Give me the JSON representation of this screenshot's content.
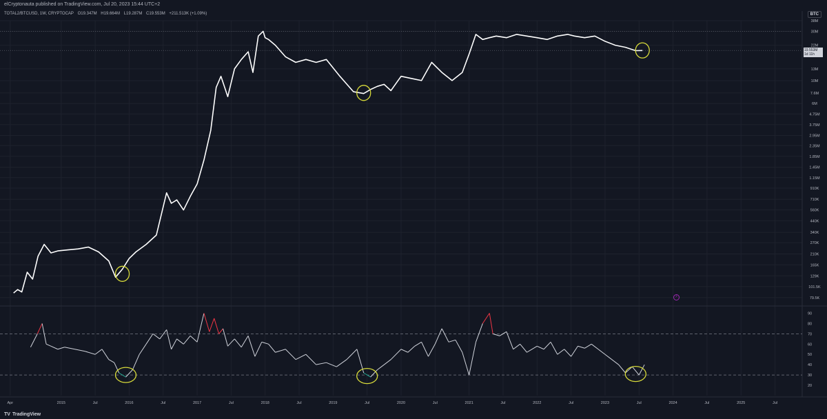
{
  "header": {
    "published": "elCryptonauta published on TradingView.com, Jul 20, 2023 15:44 UTC+2",
    "symbol": "TOTAL2/BTCUSD, 1W, CRYPTOCAP",
    "open": "O19.347M",
    "high": "H19.664M",
    "low": "L19.287M",
    "close": "C19.553M",
    "change": "+211.513K (+1.09%)",
    "currency": "BTC"
  },
  "price_tag": {
    "value": "19.553M",
    "time": "1d 11h"
  },
  "footer": {
    "brand": "TradingView",
    "logo_mark": "TV"
  },
  "colors": {
    "background": "#131722",
    "price": "#ffffff",
    "rsi": "#d1d4dc",
    "rsi_overbought": "#f23645",
    "rsi_oversold": "#22ab94",
    "highlight": "#d8db3a"
  },
  "chart_data": [
    {
      "type": "line",
      "name": "price",
      "yscale": "log",
      "ylim": [
        68000,
        38000000
      ],
      "xlim": [
        2014.1,
        2025.9
      ],
      "x": [
        2014.3,
        2014.36,
        2014.42,
        2014.5,
        2014.58,
        2014.66,
        2014.75,
        2014.85,
        2014.95,
        2015.1,
        2015.25,
        2015.4,
        2015.55,
        2015.7,
        2015.8,
        2015.9,
        2016.0,
        2016.1,
        2016.25,
        2016.4,
        2016.55,
        2016.62,
        2016.7,
        2016.8,
        2016.9,
        2017.0,
        2017.1,
        2017.2,
        2017.28,
        2017.35,
        2017.45,
        2017.55,
        2017.65,
        2017.75,
        2017.82,
        2017.9,
        2017.97,
        2018.0,
        2018.05,
        2018.15,
        2018.3,
        2018.45,
        2018.6,
        2018.75,
        2018.9,
        2019.1,
        2019.3,
        2019.45,
        2019.55,
        2019.65,
        2019.75,
        2019.85,
        2020.0,
        2020.15,
        2020.3,
        2020.45,
        2020.6,
        2020.75,
        2020.9,
        2021.0,
        2021.1,
        2021.2,
        2021.3,
        2021.4,
        2021.55,
        2021.7,
        2021.85,
        2022.0,
        2022.15,
        2022.3,
        2022.45,
        2022.55,
        2022.7,
        2022.85,
        2023.0,
        2023.15,
        2023.3,
        2023.45,
        2023.55
      ],
      "y": [
        88000,
        95000,
        90000,
        140000,
        120000,
        200000,
        260000,
        215000,
        225000,
        230000,
        235000,
        245000,
        220000,
        180000,
        125000,
        150000,
        190000,
        220000,
        260000,
        320000,
        820000,
        650000,
        700000,
        560000,
        760000,
        1000000,
        1700000,
        3300000,
        8600000,
        11000000,
        7000000,
        13000000,
        16000000,
        19000000,
        12000000,
        27000000,
        30000000,
        26000000,
        25000000,
        22000000,
        17000000,
        15000000,
        16000000,
        15000000,
        16000000,
        11000000,
        7800000,
        7500000,
        8200000,
        8800000,
        9200000,
        8000000,
        11000000,
        10500000,
        10000000,
        15000000,
        12000000,
        10000000,
        12000000,
        18000000,
        28000000,
        25000000,
        26000000,
        27000000,
        26000000,
        28000000,
        27000000,
        26000000,
        25000000,
        27000000,
        28000000,
        27000000,
        26000000,
        27000000,
        24000000,
        22000000,
        21000000,
        19500000,
        19553000
      ],
      "y_ticks": [
        {
          "value": 38000000,
          "label": "38M"
        },
        {
          "value": 30000000,
          "label": "30M"
        },
        {
          "value": 22000000,
          "label": "22M"
        },
        {
          "value": 13000000,
          "label": "13M"
        },
        {
          "value": 10000000,
          "label": "10M"
        },
        {
          "value": 7600000,
          "label": "7.6M"
        },
        {
          "value": 6000000,
          "label": "6M"
        },
        {
          "value": 4750000,
          "label": "4.75M"
        },
        {
          "value": 3750000,
          "label": "3.75M"
        },
        {
          "value": 2950000,
          "label": "2.95M"
        },
        {
          "value": 2350000,
          "label": "2.35M"
        },
        {
          "value": 1850000,
          "label": "1.85M"
        },
        {
          "value": 1450000,
          "label": "1.45M"
        },
        {
          "value": 1150000,
          "label": "1.15M"
        },
        {
          "value": 910000,
          "label": "910K"
        },
        {
          "value": 710000,
          "label": "710K"
        },
        {
          "value": 560000,
          "label": "560K"
        },
        {
          "value": 440000,
          "label": "440K"
        },
        {
          "value": 340000,
          "label": "340K"
        },
        {
          "value": 270000,
          "label": "270K"
        },
        {
          "value": 210000,
          "label": "210K"
        },
        {
          "value": 165000,
          "label": "165K"
        },
        {
          "value": 129000,
          "label": "129K"
        },
        {
          "value": 101500,
          "label": "101.5K"
        },
        {
          "value": 79500,
          "label": "79.5K"
        }
      ],
      "highlights": [
        {
          "x": 2015.9,
          "y": 135000
        },
        {
          "x": 2019.45,
          "y": 7600000
        },
        {
          "x": 2023.55,
          "y": 19600000
        }
      ]
    },
    {
      "type": "line",
      "name": "rsi",
      "ylim": [
        10,
        95
      ],
      "levels": [
        70,
        30
      ],
      "x": [
        2014.55,
        2014.65,
        2014.72,
        2014.78,
        2014.85,
        2014.95,
        2015.05,
        2015.2,
        2015.35,
        2015.5,
        2015.6,
        2015.7,
        2015.78,
        2015.85,
        2015.95,
        2016.05,
        2016.15,
        2016.25,
        2016.35,
        2016.45,
        2016.55,
        2016.62,
        2016.7,
        2016.8,
        2016.9,
        2017.0,
        2017.1,
        2017.18,
        2017.25,
        2017.32,
        2017.38,
        2017.45,
        2017.55,
        2017.65,
        2017.75,
        2017.85,
        2017.95,
        2018.05,
        2018.15,
        2018.3,
        2018.45,
        2018.6,
        2018.75,
        2018.9,
        2019.05,
        2019.2,
        2019.35,
        2019.45,
        2019.55,
        2019.65,
        2019.75,
        2019.85,
        2020.0,
        2020.1,
        2020.2,
        2020.3,
        2020.4,
        2020.5,
        2020.6,
        2020.7,
        2020.8,
        2020.9,
        2021.0,
        2021.1,
        2021.2,
        2021.3,
        2021.35,
        2021.45,
        2021.55,
        2021.65,
        2021.75,
        2021.85,
        2022.0,
        2022.1,
        2022.2,
        2022.3,
        2022.4,
        2022.5,
        2022.6,
        2022.7,
        2022.8,
        2022.9,
        2023.0,
        2023.1,
        2023.2,
        2023.3,
        2023.4,
        2023.5,
        2023.58
      ],
      "y": [
        57,
        70,
        80,
        60,
        58,
        55,
        57,
        55,
        53,
        50,
        55,
        45,
        42,
        32,
        28,
        35,
        50,
        60,
        70,
        65,
        74,
        55,
        65,
        60,
        68,
        62,
        90,
        72,
        85,
        70,
        75,
        58,
        65,
        57,
        68,
        48,
        62,
        60,
        52,
        55,
        45,
        50,
        40,
        42,
        38,
        45,
        55,
        32,
        28,
        35,
        40,
        45,
        55,
        52,
        58,
        62,
        48,
        60,
        75,
        62,
        64,
        52,
        30,
        62,
        80,
        90,
        70,
        68,
        72,
        55,
        60,
        52,
        58,
        55,
        62,
        50,
        55,
        48,
        58,
        56,
        60,
        55,
        50,
        45,
        40,
        32,
        38,
        30,
        40
      ],
      "y_ticks": [
        {
          "value": 90,
          "label": "90"
        },
        {
          "value": 80,
          "label": "80"
        },
        {
          "value": 70,
          "label": "70"
        },
        {
          "value": 60,
          "label": "60"
        },
        {
          "value": 50,
          "label": "50"
        },
        {
          "value": 40,
          "label": "40"
        },
        {
          "value": 30,
          "label": "30"
        },
        {
          "value": 20,
          "label": "20"
        }
      ],
      "highlights": [
        {
          "x": 2015.95,
          "y": 30
        },
        {
          "x": 2019.5,
          "y": 29
        },
        {
          "x": 2023.45,
          "y": 31
        }
      ]
    }
  ],
  "time_axis": {
    "ticks": [
      {
        "x": 2014.25,
        "label": "Apr"
      },
      {
        "x": 2015.0,
        "label": "2015"
      },
      {
        "x": 2015.5,
        "label": "Jul"
      },
      {
        "x": 2016.0,
        "label": "2016"
      },
      {
        "x": 2016.5,
        "label": "Jul"
      },
      {
        "x": 2017.0,
        "label": "2017"
      },
      {
        "x": 2017.5,
        "label": "Jul"
      },
      {
        "x": 2018.0,
        "label": "2018"
      },
      {
        "x": 2018.5,
        "label": "Jul"
      },
      {
        "x": 2019.0,
        "label": "2019"
      },
      {
        "x": 2019.5,
        "label": "Jul"
      },
      {
        "x": 2020.0,
        "label": "2020"
      },
      {
        "x": 2020.5,
        "label": "Jul"
      },
      {
        "x": 2021.0,
        "label": "2021"
      },
      {
        "x": 2021.5,
        "label": "Jul"
      },
      {
        "x": 2022.0,
        "label": "2022"
      },
      {
        "x": 2022.5,
        "label": "Jul"
      },
      {
        "x": 2023.0,
        "label": "2023"
      },
      {
        "x": 2023.5,
        "label": "Jul"
      },
      {
        "x": 2024.0,
        "label": "2024"
      },
      {
        "x": 2024.5,
        "label": "Jul"
      },
      {
        "x": 2025.0,
        "label": "2025"
      },
      {
        "x": 2025.5,
        "label": "Jul"
      }
    ]
  }
}
